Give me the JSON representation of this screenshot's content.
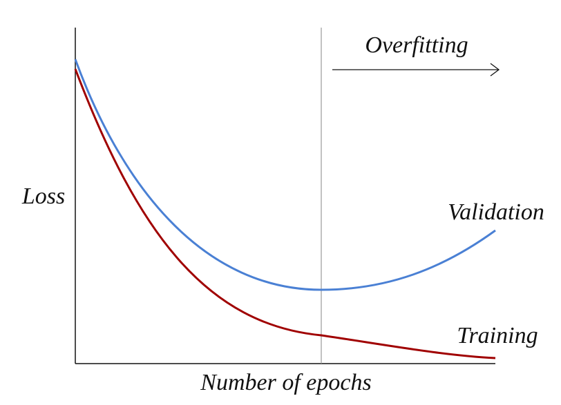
{
  "annotation": "Overfitting",
  "y_label": "Loss",
  "x_label": "Number of epochs",
  "curves": {
    "validation": "Validation",
    "training": "Training"
  }
}
